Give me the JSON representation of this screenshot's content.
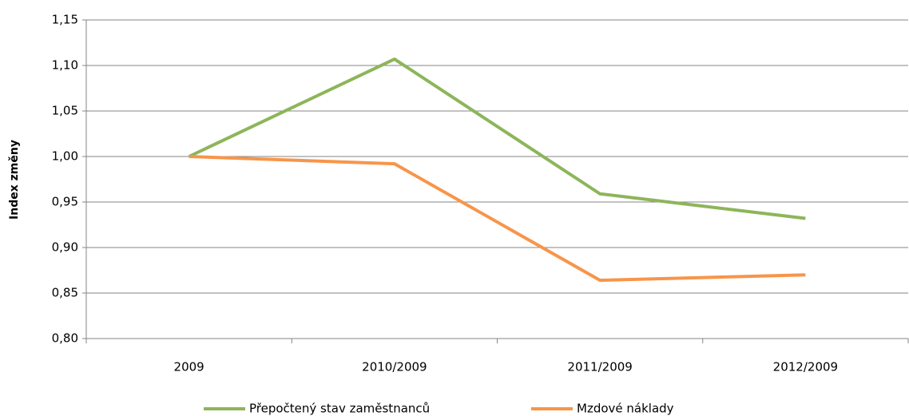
{
  "chart_data": {
    "type": "line",
    "y_label": "Index změny",
    "categories": [
      "2009",
      "2010/2009",
      "2011/2009",
      "2012/2009"
    ],
    "series": [
      {
        "name": "Přepočtený stav zaměstnanců",
        "color": "#8db55a",
        "values": [
          1.0,
          1.107,
          0.959,
          0.932
        ]
      },
      {
        "name": "Mzdové náklady",
        "color": "#f7954a",
        "values": [
          1.0,
          0.992,
          0.864,
          0.87
        ]
      }
    ],
    "ylim": [
      0.8,
      1.15
    ],
    "yticks": [
      {
        "value": 0.8,
        "label": "0,80"
      },
      {
        "value": 0.85,
        "label": "0,85"
      },
      {
        "value": 0.9,
        "label": "0,90"
      },
      {
        "value": 0.95,
        "label": "0,95"
      },
      {
        "value": 1.0,
        "label": "1,00"
      },
      {
        "value": 1.05,
        "label": "1,05"
      },
      {
        "value": 1.1,
        "label": "1,10"
      },
      {
        "value": 1.15,
        "label": "1,15"
      }
    ],
    "grid": true,
    "legend": "bottom"
  }
}
